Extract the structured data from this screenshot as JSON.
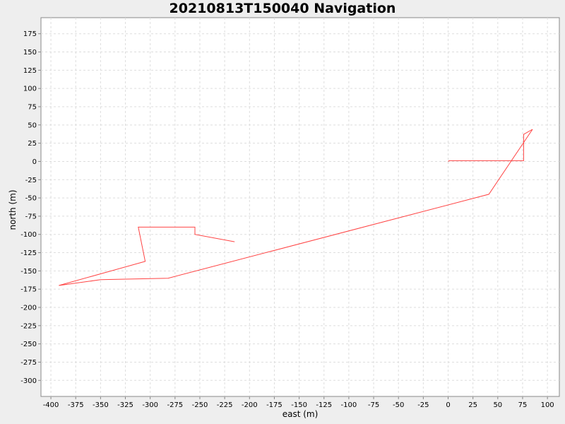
{
  "chart_data": {
    "type": "line",
    "title": "20210813T150040 Navigation",
    "xlabel": "east (m)",
    "ylabel": "north (m)",
    "xlim": [
      -410,
      112
    ],
    "ylim": [
      -322,
      197
    ],
    "xticks": [
      -400,
      -375,
      -350,
      -325,
      -300,
      -275,
      -250,
      -225,
      -200,
      -175,
      -150,
      -125,
      -100,
      -75,
      -50,
      -25,
      0,
      25,
      50,
      75,
      100
    ],
    "yticks": [
      175,
      150,
      125,
      100,
      75,
      50,
      25,
      0,
      -25,
      -50,
      -75,
      -100,
      -125,
      -150,
      -175,
      -200,
      -225,
      -250,
      -275,
      -300
    ],
    "grid": true,
    "series": [
      {
        "name": "",
        "color": "#ff4444",
        "x": [
          0,
          1,
          76,
          76,
          85,
          41,
          -282,
          -350,
          -392,
          -305,
          -312,
          -255,
          -255,
          -215
        ],
        "y": [
          0,
          1,
          1,
          37,
          44,
          -45,
          -160,
          -162,
          -170,
          -137,
          -90,
          -90,
          -100,
          -110
        ]
      }
    ]
  }
}
